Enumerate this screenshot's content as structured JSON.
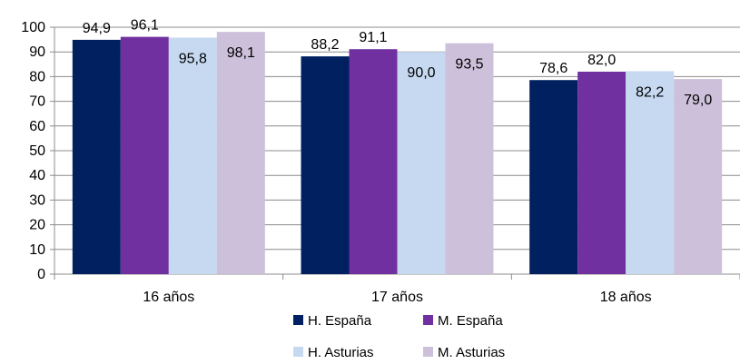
{
  "chart_data": {
    "type": "bar",
    "title": "",
    "xlabel": "",
    "ylabel": "",
    "categories": [
      "16 años",
      "17 años",
      "18 años"
    ],
    "ylim": [
      0,
      100
    ],
    "yticks": [
      0,
      10,
      20,
      30,
      40,
      50,
      60,
      70,
      80,
      90,
      100
    ],
    "grid": true,
    "legend_position": "bottom",
    "series": [
      {
        "name": "H. España",
        "color": "#002060",
        "values": [
          94.9,
          88.2,
          78.6
        ],
        "labels": [
          "94,9",
          "88,2",
          "78,6"
        ]
      },
      {
        "name": "M. España",
        "color": "#7030A0",
        "values": [
          96.1,
          91.1,
          82.0
        ],
        "labels": [
          "96,1",
          "91,1",
          "82,0"
        ]
      },
      {
        "name": "H. Asturias",
        "color": "#C6D9F1",
        "values": [
          95.8,
          90.0,
          82.2
        ],
        "labels": [
          "95,8",
          "90,0",
          "82,2"
        ]
      },
      {
        "name": "M. Asturias",
        "color": "#CCC0DA",
        "values": [
          98.1,
          93.5,
          79.0
        ],
        "labels": [
          "98,1",
          "93,5",
          "79,0"
        ]
      }
    ]
  }
}
